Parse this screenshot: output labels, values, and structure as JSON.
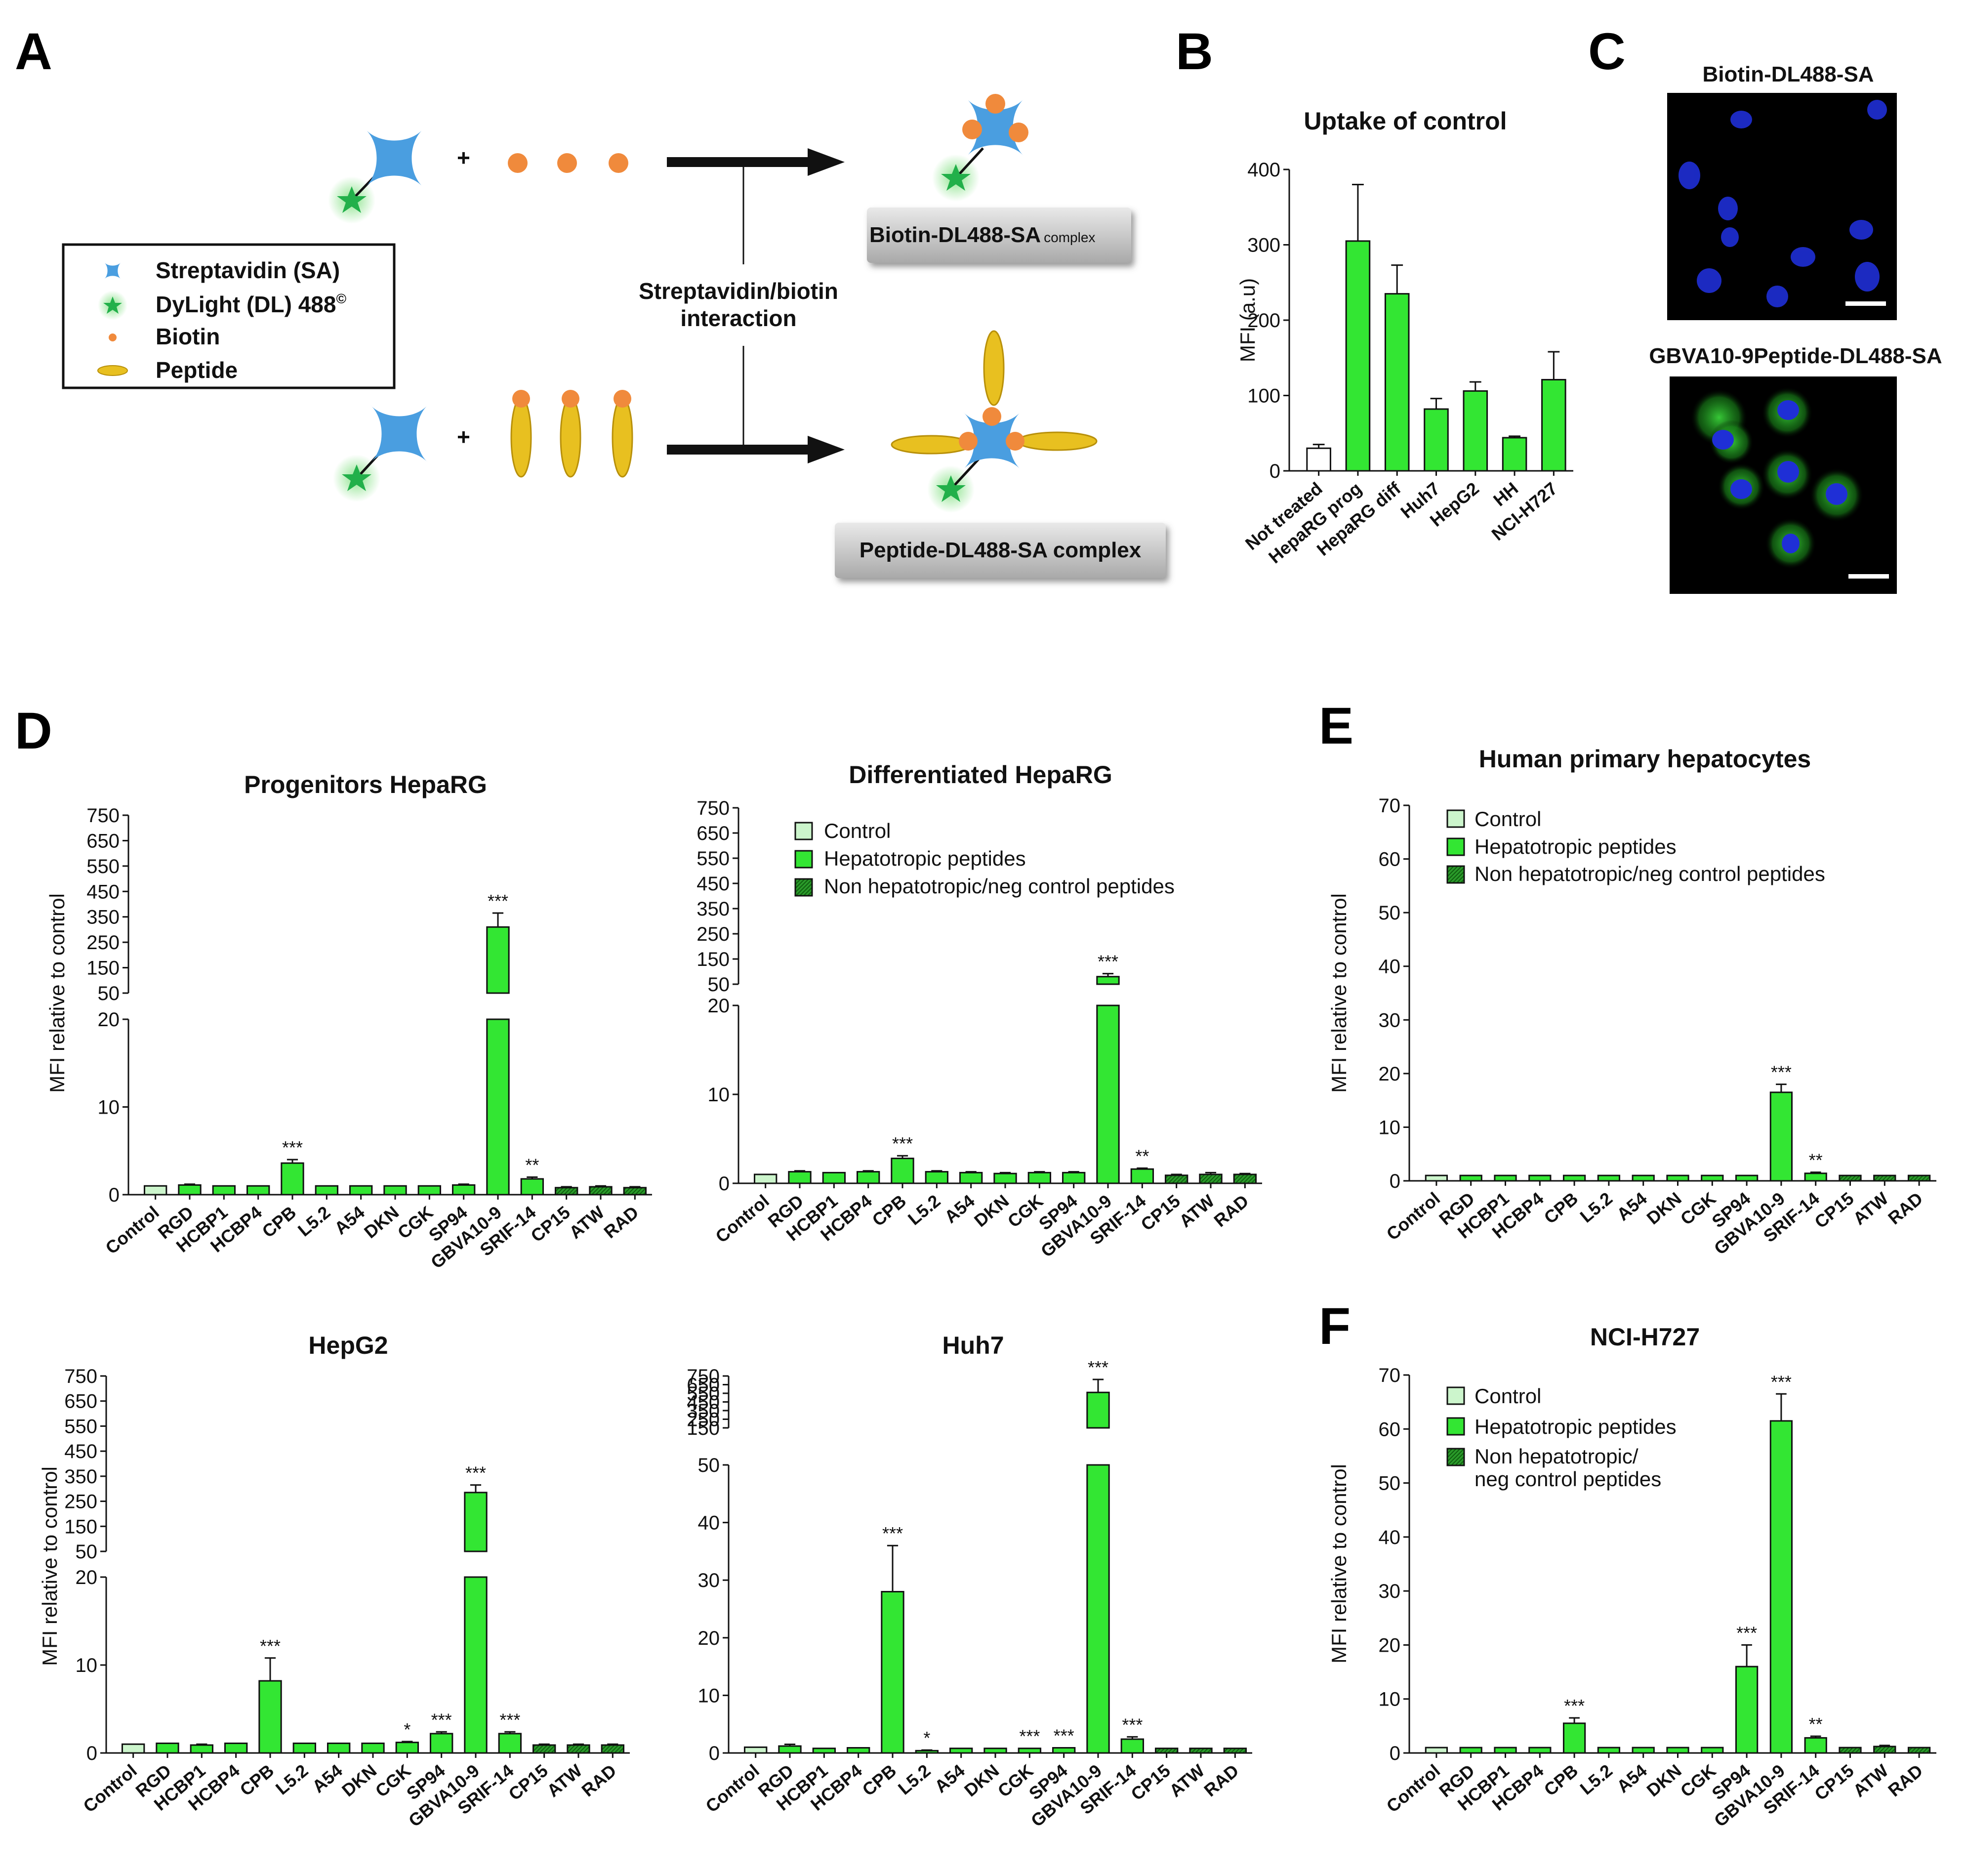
{
  "panel_letters": {
    "A": "A",
    "B": "B",
    "C": "C",
    "D": "D",
    "E": "E",
    "F": "F"
  },
  "schematic": {
    "legend": [
      {
        "label": "Streptavidin (SA)",
        "icon": "streptavidin-icon"
      },
      {
        "label": "DyLight (DL) 488",
        "sup": "©",
        "icon": "dylight-star-icon"
      },
      {
        "label": "Biotin",
        "icon": "biotin-dot-icon"
      },
      {
        "label": "Peptide",
        "icon": "peptide-ellipse-icon"
      }
    ],
    "plus": "+",
    "interaction_line1": "Streptavidin/biotin",
    "interaction_line2": "interaction",
    "complex_top": "Biotin-DL488-SA",
    "complex_top_suffix": "complex",
    "complex_bottom": "Peptide-DL488-SA complex",
    "colors": {
      "streptavidin": "#4a9ee0",
      "star": "#22b04a",
      "biotin": "#f08a3c",
      "peptide": "#e8c020"
    }
  },
  "microscopy": {
    "top_title": "Biotin-DL488-SA",
    "bottom_title": "GBVA10-9Peptide-DL488-SA"
  },
  "legend_labels": {
    "control": "Control",
    "hepatotropic": "Hepatotropic peptides",
    "nonhep": "Non hepatotropic/neg control peptides",
    "nonhep_line1": "Non hepatotropic/",
    "nonhep_line2": "neg control peptides"
  },
  "colors": {
    "control": "#ccf5cc",
    "hepatotropic": "#33e633",
    "nonhep": "#2a9a2a",
    "control_b": "#ffffff"
  },
  "chart_data": [
    {
      "id": "B",
      "type": "bar",
      "title": "Uptake of control",
      "ylabel": "MFI (a.u)",
      "categories": [
        "Not treated",
        "HepaRG prog",
        "HepaRG diff",
        "Huh7",
        "HepG2",
        "HH",
        "NCI-H727"
      ],
      "values": [
        30,
        305,
        235,
        82,
        106,
        44,
        121
      ],
      "errors": [
        5,
        75,
        38,
        14,
        12,
        2,
        37
      ],
      "yticks": [
        0,
        100,
        200,
        300,
        400
      ],
      "ylim": [
        0,
        400
      ]
    },
    {
      "id": "D1",
      "type": "bar",
      "title": "Progenitors HepaRG",
      "ylabel": "MFI relative to control",
      "categories": [
        "Control",
        "RGD",
        "HCBP1",
        "HCBP4",
        "CPB",
        "L5.2",
        "A54",
        "DKN",
        "CGK",
        "SP94",
        "GBVA10-9",
        "SRIF-14",
        "CP15",
        "ATW",
        "RAD"
      ],
      "values": [
        1,
        1.1,
        1.0,
        1.0,
        3.6,
        1.0,
        1.0,
        1.0,
        1.0,
        1.1,
        310,
        1.8,
        0.8,
        0.9,
        0.8
      ],
      "errors": [
        0,
        0.1,
        0,
        0,
        0.4,
        0,
        0,
        0,
        0,
        0.1,
        55,
        0.2,
        0.1,
        0.1,
        0.1
      ],
      "significance": [
        "",
        "",
        "",
        "",
        "***",
        "",
        "",
        "",
        "",
        "",
        "***",
        "**",
        "",
        "",
        ""
      ],
      "lower_yticks": [
        0,
        10,
        20
      ],
      "upper_yticks": [
        50,
        150,
        250,
        350,
        450,
        550,
        650,
        750
      ]
    },
    {
      "id": "D2",
      "type": "bar",
      "title": "Differentiated HepaRG",
      "ylabel": "",
      "categories": [
        "Control",
        "RGD",
        "HCBP1",
        "HCBP4",
        "CPB",
        "L5.2",
        "A54",
        "DKN",
        "CGK",
        "SP94",
        "GBVA10-9",
        "SRIF-14",
        "CP15",
        "ATW",
        "RAD"
      ],
      "values": [
        1,
        1.3,
        1.2,
        1.3,
        2.8,
        1.3,
        1.2,
        1.1,
        1.2,
        1.2,
        80,
        1.6,
        0.9,
        1.0,
        1.0
      ],
      "errors": [
        0,
        0.1,
        0,
        0.1,
        0.3,
        0.1,
        0.1,
        0.1,
        0.1,
        0.1,
        12,
        0.1,
        0.1,
        0.2,
        0.1
      ],
      "significance": [
        "",
        "",
        "",
        "",
        "***",
        "",
        "",
        "",
        "",
        "",
        "***",
        "**",
        "",
        "",
        ""
      ],
      "lower_yticks": [
        0,
        10,
        20
      ],
      "upper_yticks": [
        50,
        150,
        250,
        350,
        450,
        550,
        650,
        750
      ]
    },
    {
      "id": "D3",
      "type": "bar",
      "title": "HepG2",
      "ylabel": "MFI relative to control",
      "categories": [
        "Control",
        "RGD",
        "HCBP1",
        "HCBP4",
        "CPB",
        "L5.2",
        "A54",
        "DKN",
        "CGK",
        "SP94",
        "GBVA10-9",
        "SRIF-14",
        "CP15",
        "ATW",
        "RAD"
      ],
      "values": [
        1,
        1.1,
        0.9,
        1.1,
        8.2,
        1.1,
        1.1,
        1.1,
        1.2,
        2.2,
        285,
        2.2,
        0.9,
        0.9,
        0.9
      ],
      "errors": [
        0,
        0,
        0.1,
        0,
        2.6,
        0,
        0,
        0,
        0.1,
        0.2,
        30,
        0.2,
        0.1,
        0.1,
        0.1
      ],
      "significance": [
        "",
        "",
        "",
        "",
        "***",
        "",
        "",
        "",
        "*",
        "***",
        "***",
        "***",
        "",
        "",
        ""
      ],
      "lower_yticks": [
        0,
        10,
        20
      ],
      "upper_yticks": [
        50,
        150,
        250,
        350,
        450,
        550,
        650,
        750
      ]
    },
    {
      "id": "D4",
      "type": "bar",
      "title": "Huh7",
      "ylabel": "",
      "categories": [
        "Control",
        "RGD",
        "HCBP1",
        "HCBP4",
        "CPB",
        "L5.2",
        "A54",
        "DKN",
        "CGK",
        "SP94",
        "GBVA10-9",
        "SRIF-14",
        "CP15",
        "ATW",
        "RAD"
      ],
      "values": [
        1,
        1.2,
        0.8,
        0.9,
        28,
        0.4,
        0.8,
        0.8,
        0.8,
        0.9,
        560,
        2.4,
        0.8,
        0.8,
        0.8
      ],
      "errors": [
        0,
        0.3,
        0,
        0,
        8,
        0.1,
        0,
        0,
        0,
        0,
        150,
        0.4,
        0,
        0,
        0
      ],
      "significance": [
        "",
        "",
        "",
        "",
        "***",
        "*",
        "",
        "",
        "***",
        "***",
        "***",
        "***",
        "",
        "",
        ""
      ],
      "lower_yticks": [
        0,
        10,
        20,
        30,
        40,
        50
      ],
      "upper_yticks": [
        150,
        250,
        350,
        450,
        550,
        650,
        750
      ]
    },
    {
      "id": "E",
      "type": "bar",
      "title": "Human primary hepatocytes",
      "ylabel": "MFI relative to control",
      "categories": [
        "Control",
        "RGD",
        "HCBP1",
        "HCBP4",
        "CPB",
        "L5.2",
        "A54",
        "DKN",
        "CGK",
        "SP94",
        "GBVA10-9",
        "SRIF-14",
        "CP15",
        "ATW",
        "RAD"
      ],
      "values": [
        1,
        1,
        1,
        1,
        1,
        1,
        1,
        1,
        1,
        1,
        16.5,
        1.4,
        1,
        1,
        1
      ],
      "errors": [
        0,
        0,
        0,
        0,
        0,
        0,
        0,
        0,
        0,
        0,
        1.5,
        0.2,
        0,
        0,
        0
      ],
      "significance": [
        "",
        "",
        "",
        "",
        "",
        "",
        "",
        "",
        "",
        "",
        "***",
        "**",
        "",
        "",
        ""
      ],
      "yticks": [
        0,
        10,
        20,
        30,
        40,
        50,
        60,
        70
      ],
      "ylim": [
        0,
        70
      ]
    },
    {
      "id": "F",
      "type": "bar",
      "title": "NCI-H727",
      "ylabel": "MFI relative to control",
      "categories": [
        "Control",
        "RGD",
        "HCBP1",
        "HCBP4",
        "CPB",
        "L5.2",
        "A54",
        "DKN",
        "CGK",
        "SP94",
        "GBVA10-9",
        "SRIF-14",
        "CP15",
        "ATW",
        "RAD"
      ],
      "values": [
        1,
        1,
        1,
        1,
        5.5,
        1,
        1,
        1,
        1,
        16,
        61.5,
        2.8,
        1,
        1.2,
        1
      ],
      "errors": [
        0,
        0,
        0,
        0,
        1.0,
        0,
        0,
        0,
        0,
        4,
        5,
        0.3,
        0,
        0.2,
        0
      ],
      "significance": [
        "",
        "",
        "",
        "",
        "***",
        "",
        "",
        "",
        "",
        "***",
        "***",
        "**",
        "",
        "",
        ""
      ],
      "yticks": [
        0,
        10,
        20,
        30,
        40,
        50,
        60,
        70
      ],
      "ylim": [
        0,
        70
      ]
    }
  ]
}
